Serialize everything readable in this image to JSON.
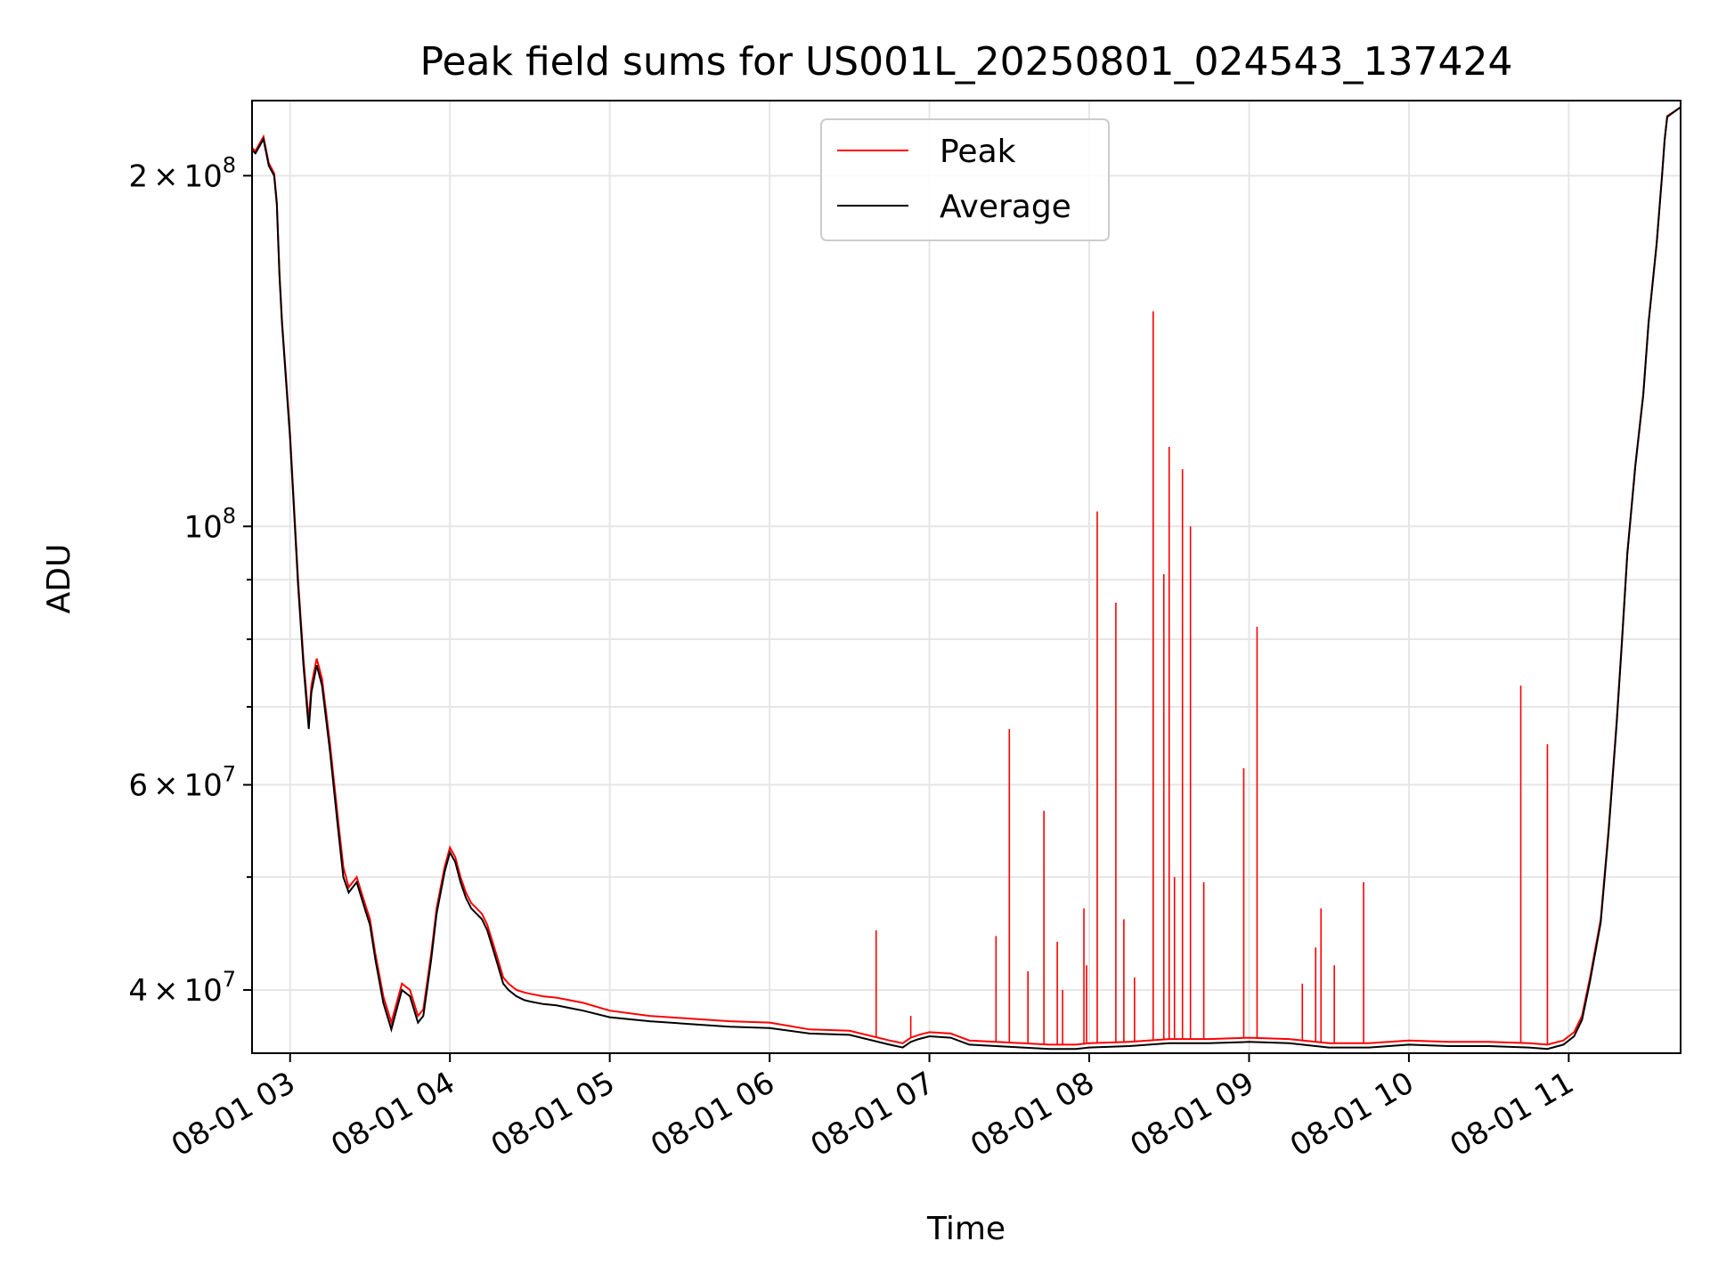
{
  "chart_data": {
    "type": "line",
    "title": "Peak field sums for US001L_20250801_024543_137424",
    "xlabel": "Time",
    "ylabel": "ADU",
    "yscale": "log",
    "grid": true,
    "legend_placement": "upper center",
    "xlim": [
      "2025-08-01 02:45:43",
      "2025-08-01 11:42:00"
    ],
    "ylim": [
      35300000,
      232000000
    ],
    "x_ticks": [
      {
        "value": "2025-08-01 03:00",
        "label": "08-01 03"
      },
      {
        "value": "2025-08-01 04:00",
        "label": "08-01 04"
      },
      {
        "value": "2025-08-01 05:00",
        "label": "08-01 05"
      },
      {
        "value": "2025-08-01 06:00",
        "label": "08-01 06"
      },
      {
        "value": "2025-08-01 07:00",
        "label": "08-01 07"
      },
      {
        "value": "2025-08-01 08:00",
        "label": "08-01 08"
      },
      {
        "value": "2025-08-01 09:00",
        "label": "08-01 09"
      },
      {
        "value": "2025-08-01 10:00",
        "label": "08-01 10"
      },
      {
        "value": "2025-08-01 11:00",
        "label": "08-01 11"
      }
    ],
    "y_major_ticks": [
      {
        "value": 40000000,
        "mantissa": "4",
        "exponent": "7"
      },
      {
        "value": 60000000,
        "mantissa": "6",
        "exponent": "7"
      },
      {
        "value": 100000000,
        "mantissa": "",
        "exponent": "8"
      },
      {
        "value": 200000000,
        "mantissa": "2",
        "exponent": "8"
      }
    ],
    "y_minor_ticks": [
      50000000,
      70000000,
      80000000,
      90000000
    ],
    "times_symbol": "×",
    "tick_base": "10",
    "series": [
      {
        "name": "Peak",
        "color": "#ff0000",
        "x": [
          "02:45",
          "02:47",
          "02:50",
          "02:52",
          "02:54",
          "02:55",
          "02:56",
          "02:57",
          "03:00",
          "03:03",
          "03:05",
          "03:07",
          "03:08",
          "03:09",
          "03:10",
          "03:12",
          "03:15",
          "03:18",
          "03:20",
          "03:22",
          "03:25",
          "03:28",
          "03:30",
          "03:32",
          "03:35",
          "03:38",
          "03:40",
          "03:42",
          "03:45",
          "03:48",
          "03:50",
          "03:53",
          "03:55",
          "03:58",
          "04:00",
          "04:02",
          "04:04",
          "04:06",
          "04:08",
          "04:10",
          "04:12",
          "04:14",
          "04:16",
          "04:18",
          "04:20",
          "04:22",
          "04:25",
          "04:28",
          "04:30",
          "04:35",
          "04:40",
          "04:50",
          "05:00",
          "05:15",
          "05:30",
          "05:45",
          "06:00",
          "06:15",
          "06:30",
          "06:45",
          "06:50",
          "06:53",
          "06:56",
          "07:00",
          "07:08",
          "07:15",
          "07:25",
          "07:35",
          "07:45",
          "07:55",
          "08:00",
          "08:15",
          "08:30",
          "08:45",
          "09:00",
          "09:15",
          "09:30",
          "09:45",
          "10:00",
          "10:15",
          "10:30",
          "10:45",
          "10:52",
          "10:58",
          "11:02",
          "11:05",
          "11:08",
          "11:12",
          "11:15",
          "11:18",
          "11:20",
          "11:22",
          "11:25",
          "11:28",
          "11:30",
          "11:33",
          "11:35",
          "11:36",
          "11:37",
          "11:42"
        ],
        "y": [
          212000000,
          210000000,
          216000000,
          205000000,
          201000000,
          190000000,
          165000000,
          150000000,
          120000000,
          90000000,
          77000000,
          68000000,
          73000000,
          75000000,
          77000000,
          74000000,
          65000000,
          56000000,
          51000000,
          49000000,
          50000000,
          47500000,
          46000000,
          43000000,
          39500000,
          37500000,
          39000000,
          40500000,
          40000000,
          38000000,
          38500000,
          43000000,
          47000000,
          51000000,
          53000000,
          52000000,
          50000000,
          48500000,
          47500000,
          47000000,
          46500000,
          45500000,
          44000000,
          42500000,
          41000000,
          40500000,
          40000000,
          39800000,
          39700000,
          39500000,
          39400000,
          39000000,
          38400000,
          38000000,
          37800000,
          37600000,
          37500000,
          37000000,
          36900000,
          36200000,
          36000000,
          36400000,
          36600000,
          36800000,
          36700000,
          36200000,
          36100000,
          36000000,
          35900000,
          35900000,
          36000000,
          36100000,
          36300000,
          36300000,
          36400000,
          36300000,
          36000000,
          36000000,
          36200000,
          36100000,
          36100000,
          36000000,
          35900000,
          36200000,
          36800000,
          38000000,
          41000000,
          46000000,
          55000000,
          68000000,
          80000000,
          95000000,
          113000000,
          130000000,
          150000000,
          175000000,
          200000000,
          215000000,
          225000000,
          229000000
        ]
      },
      {
        "name": "Average",
        "color": "#000000",
        "x": [
          "02:45",
          "02:47",
          "02:50",
          "02:52",
          "02:54",
          "02:55",
          "02:56",
          "02:57",
          "03:00",
          "03:03",
          "03:05",
          "03:07",
          "03:08",
          "03:09",
          "03:10",
          "03:12",
          "03:15",
          "03:18",
          "03:20",
          "03:22",
          "03:25",
          "03:28",
          "03:30",
          "03:32",
          "03:35",
          "03:38",
          "03:40",
          "03:42",
          "03:45",
          "03:48",
          "03:50",
          "03:53",
          "03:55",
          "03:58",
          "04:00",
          "04:02",
          "04:04",
          "04:06",
          "04:08",
          "04:10",
          "04:12",
          "04:14",
          "04:16",
          "04:18",
          "04:20",
          "04:22",
          "04:25",
          "04:28",
          "04:30",
          "04:35",
          "04:40",
          "04:50",
          "05:00",
          "05:15",
          "05:30",
          "05:45",
          "06:00",
          "06:15",
          "06:30",
          "06:45",
          "06:50",
          "06:53",
          "06:56",
          "07:00",
          "07:08",
          "07:15",
          "07:25",
          "07:35",
          "07:45",
          "07:55",
          "08:00",
          "08:15",
          "08:30",
          "08:45",
          "09:00",
          "09:15",
          "09:30",
          "09:45",
          "10:00",
          "10:15",
          "10:30",
          "10:45",
          "10:52",
          "10:58",
          "11:02",
          "11:05",
          "11:08",
          "11:12",
          "11:15",
          "11:18",
          "11:20",
          "11:22",
          "11:25",
          "11:28",
          "11:30",
          "11:33",
          "11:35",
          "11:36",
          "11:37",
          "11:42"
        ],
        "y": [
          211000000,
          209000000,
          215000000,
          204000000,
          200000000,
          189000000,
          164000000,
          149000000,
          119000000,
          89000000,
          76000000,
          67000000,
          72000000,
          74000000,
          76000000,
          73000000,
          64000000,
          55000000,
          50000000,
          48500000,
          49500000,
          47000000,
          45500000,
          42500000,
          39000000,
          37000000,
          38500000,
          40000000,
          39500000,
          37500000,
          38000000,
          42500000,
          46500000,
          50500000,
          52500000,
          51500000,
          49500000,
          48000000,
          47000000,
          46500000,
          46000000,
          45000000,
          43500000,
          42000000,
          40500000,
          40000000,
          39500000,
          39200000,
          39100000,
          38900000,
          38800000,
          38400000,
          37900000,
          37600000,
          37400000,
          37200000,
          37100000,
          36700000,
          36600000,
          35900000,
          35700000,
          36100000,
          36300000,
          36500000,
          36400000,
          35900000,
          35800000,
          35700000,
          35600000,
          35600000,
          35700000,
          35800000,
          36000000,
          36000000,
          36100000,
          36000000,
          35700000,
          35700000,
          35900000,
          35800000,
          35800000,
          35700000,
          35600000,
          35900000,
          36500000,
          37700000,
          40700000,
          45700000,
          54700000,
          67700000,
          79700000,
          94700000,
          112700000,
          129700000,
          149700000,
          174700000,
          199700000,
          214700000,
          224700000,
          229000000
        ]
      }
    ],
    "peak_spikes": {
      "x": [
        "06:40",
        "06:53",
        "07:25",
        "07:30",
        "07:37",
        "07:43",
        "07:48",
        "07:50",
        "07:58",
        "07:59",
        "08:03",
        "08:10",
        "08:13",
        "08:17",
        "08:24",
        "08:28",
        "08:30",
        "08:32",
        "08:35",
        "08:38",
        "08:43",
        "08:58",
        "09:03",
        "09:20",
        "09:25",
        "09:27",
        "09:32",
        "09:43",
        "10:42",
        "10:52"
      ],
      "y": [
        45000000,
        38000000,
        44500000,
        67000000,
        41500000,
        57000000,
        44000000,
        40000000,
        47000000,
        42000000,
        103000000,
        86000000,
        46000000,
        41000000,
        153000000,
        91000000,
        117000000,
        50000000,
        112000000,
        100000000,
        49500000,
        62000000,
        82000000,
        40500000,
        43500000,
        47000000,
        42000000,
        49500000,
        73000000,
        65000000
      ]
    }
  }
}
